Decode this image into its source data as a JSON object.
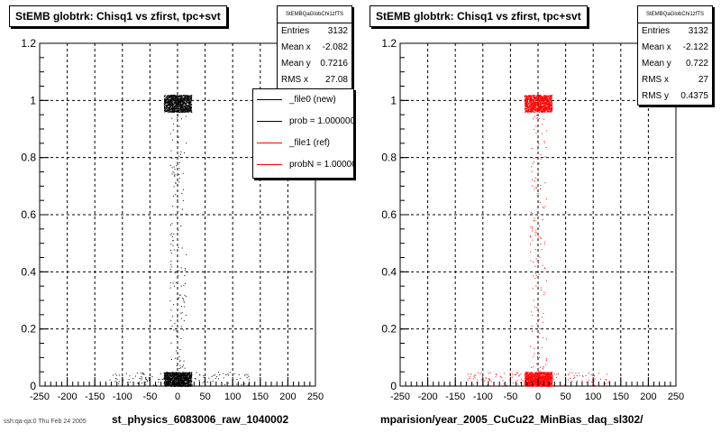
{
  "chart_data": [
    {
      "type": "scatter",
      "title": "StEMB globtrk: Chisq1 vs zfirst, tpc+svt",
      "xlabel": "st_physics_6083006_raw_1040002",
      "ylabel": "",
      "xlim": [
        -250,
        250
      ],
      "ylim": [
        0,
        1.2
      ],
      "x_ticks": [
        -250,
        -200,
        -150,
        -100,
        -50,
        0,
        50,
        100,
        150,
        200,
        250
      ],
      "y_ticks": [
        0,
        0.2,
        0.4,
        0.6,
        0.8,
        1,
        1.2
      ],
      "grid": true,
      "color": "#000000",
      "stats": {
        "name": "StEMBQaGlobChi1zfTS",
        "entries_label": "Entries",
        "entries": "3132",
        "mean_x_label": "Mean x",
        "mean_x": "-2.082",
        "mean_y_label": "Mean y",
        "mean_y": "0.7216",
        "rms_x_label": "RMS x",
        "rms_x": "27.08"
      },
      "clusters": [
        {
          "x": [
            -25,
            25
          ],
          "y": [
            0.96,
            1.02
          ],
          "density": "dense"
        },
        {
          "x": [
            -25,
            25
          ],
          "y": [
            0.0,
            0.05
          ],
          "density": "dense"
        },
        {
          "x": [
            -130,
            130
          ],
          "y": [
            0.0,
            0.05
          ],
          "density": "sparse"
        },
        {
          "x": [
            -15,
            15
          ],
          "y": [
            0.05,
            0.95
          ],
          "density": "sparse"
        }
      ],
      "legend": {
        "position": "top-right",
        "entries": [
          {
            "label": "_file0 (new)",
            "color": "#000000"
          },
          {
            "label": "prob = 1.000000",
            "color": "#000000"
          },
          {
            "label": "_file1 (ref)",
            "color": "#ff0000"
          },
          {
            "label": "probN = 1.000000",
            "color": "#ff0000"
          }
        ]
      }
    },
    {
      "type": "scatter",
      "title": "StEMB globtrk: Chisq1 vs zfirst, tpc+svt",
      "xlabel": "mparision/year_2005_CuCu22_MinBias_daq_sl302/",
      "ylabel": "",
      "xlim": [
        -250,
        250
      ],
      "ylim": [
        0,
        1.2
      ],
      "x_ticks": [
        -250,
        -200,
        -150,
        -100,
        -50,
        0,
        50,
        100,
        150,
        200,
        250
      ],
      "y_ticks": [
        0,
        0.2,
        0.4,
        0.6,
        0.8,
        1,
        1.2
      ],
      "grid": true,
      "color": "#ff0000",
      "stats": {
        "name": "StEMBQaGlobChi1zfTS",
        "entries_label": "Entries",
        "entries": "3132",
        "mean_x_label": "Mean x",
        "mean_x": "-2.122",
        "mean_y_label": "Mean y",
        "mean_y": "0.722",
        "rms_x_label": "RMS x",
        "rms_x": "27",
        "rms_y_label": "RMS y",
        "rms_y": "0.4375"
      },
      "clusters": [
        {
          "x": [
            -25,
            25
          ],
          "y": [
            0.96,
            1.02
          ],
          "density": "dense"
        },
        {
          "x": [
            -25,
            25
          ],
          "y": [
            0.0,
            0.05
          ],
          "density": "dense"
        },
        {
          "x": [
            -130,
            130
          ],
          "y": [
            0.0,
            0.05
          ],
          "density": "sparse"
        },
        {
          "x": [
            -15,
            15
          ],
          "y": [
            0.05,
            0.95
          ],
          "density": "sparse"
        }
      ]
    }
  ],
  "footer": "ssh:qa-qa:0 Thu Feb 24 2005"
}
